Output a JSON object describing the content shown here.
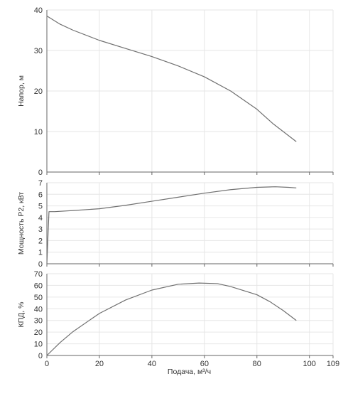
{
  "x_axis": {
    "label": "Подача, м³/ч",
    "range": [
      0,
      109
    ],
    "ticks": [
      0,
      20,
      40,
      60,
      80,
      100,
      109
    ]
  },
  "colors": {
    "curve": "#707070",
    "grid": "#e6e6e6",
    "axis": "#666666",
    "text": "#333333"
  },
  "chart_data": [
    {
      "type": "line",
      "ylabel": "Напор, м",
      "ylim": [
        0,
        40
      ],
      "yticks": [
        0,
        10,
        20,
        30,
        40
      ],
      "grid": true,
      "series": [
        {
          "x": [
            0,
            5,
            10,
            20,
            30,
            40,
            50,
            60,
            70,
            80,
            86,
            90,
            95
          ],
          "y": [
            38.5,
            36.5,
            35,
            32.5,
            30.5,
            28.5,
            26.2,
            23.5,
            20,
            15.5,
            12,
            10,
            7.5
          ]
        }
      ]
    },
    {
      "type": "line",
      "ylabel": "Мощность P2, кВт",
      "ylim": [
        0,
        7
      ],
      "yticks": [
        0,
        1,
        2,
        3,
        4,
        5,
        6,
        7
      ],
      "grid": true,
      "series": [
        {
          "x": [
            0,
            0.4,
            0.8,
            1.5,
            3,
            10,
            20,
            30,
            40,
            50,
            60,
            70,
            80,
            87,
            92,
            95
          ],
          "y": [
            0,
            2.3,
            4.5,
            4.5,
            4.5,
            4.6,
            4.75,
            5.05,
            5.4,
            5.75,
            6.1,
            6.4,
            6.6,
            6.65,
            6.6,
            6.55
          ]
        }
      ]
    },
    {
      "type": "line",
      "ylabel": "КПД, %",
      "ylim": [
        0,
        70
      ],
      "yticks": [
        0,
        10,
        20,
        30,
        40,
        50,
        60,
        70
      ],
      "grid": true,
      "series": [
        {
          "x": [
            0,
            5,
            10,
            20,
            30,
            40,
            50,
            58,
            65,
            70,
            80,
            85,
            90,
            95
          ],
          "y": [
            0,
            11,
            20.5,
            36,
            47.5,
            56,
            61,
            62,
            61.5,
            59,
            52,
            46,
            38.5,
            30
          ]
        }
      ]
    }
  ]
}
